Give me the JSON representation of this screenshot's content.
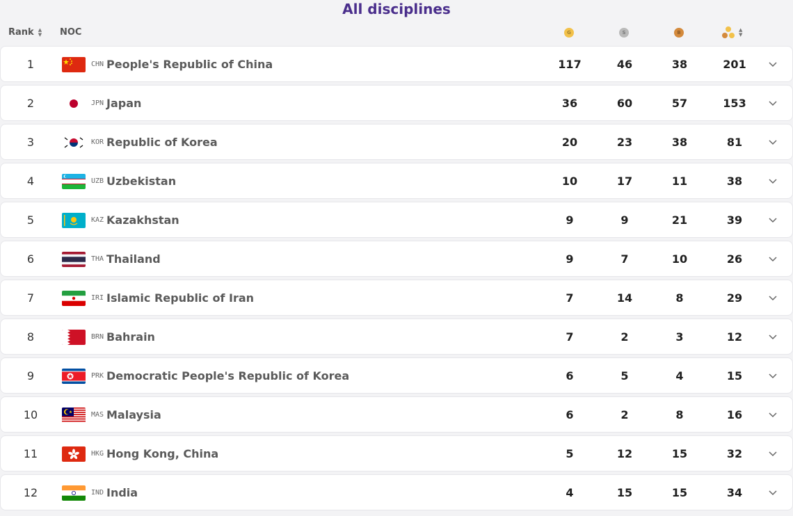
{
  "title": "All disciplines",
  "header": {
    "rank_label": "Rank",
    "noc_label": "NOC",
    "gold_letter": "G",
    "silver_letter": "S",
    "bronze_letter": "B"
  },
  "colors": {
    "accent": "#4a2e8c",
    "gold": "#f2c14a",
    "silver": "#b9b9b9",
    "bronze": "#d48a3c"
  },
  "rows": [
    {
      "rank": "1",
      "code": "CHN",
      "name": "People's Republic of China",
      "gold": "117",
      "silver": "46",
      "bronze": "38",
      "total": "201"
    },
    {
      "rank": "2",
      "code": "JPN",
      "name": "Japan",
      "gold": "36",
      "silver": "60",
      "bronze": "57",
      "total": "153"
    },
    {
      "rank": "3",
      "code": "KOR",
      "name": "Republic of Korea",
      "gold": "20",
      "silver": "23",
      "bronze": "38",
      "total": "81"
    },
    {
      "rank": "4",
      "code": "UZB",
      "name": "Uzbekistan",
      "gold": "10",
      "silver": "17",
      "bronze": "11",
      "total": "38"
    },
    {
      "rank": "5",
      "code": "KAZ",
      "name": "Kazakhstan",
      "gold": "9",
      "silver": "9",
      "bronze": "21",
      "total": "39"
    },
    {
      "rank": "6",
      "code": "THA",
      "name": "Thailand",
      "gold": "9",
      "silver": "7",
      "bronze": "10",
      "total": "26"
    },
    {
      "rank": "7",
      "code": "IRI",
      "name": "Islamic Republic of Iran",
      "gold": "7",
      "silver": "14",
      "bronze": "8",
      "total": "29"
    },
    {
      "rank": "8",
      "code": "BRN",
      "name": "Bahrain",
      "gold": "7",
      "silver": "2",
      "bronze": "3",
      "total": "12"
    },
    {
      "rank": "9",
      "code": "PRK",
      "name": "Democratic People's Republic of Korea",
      "gold": "6",
      "silver": "5",
      "bronze": "4",
      "total": "15"
    },
    {
      "rank": "10",
      "code": "MAS",
      "name": "Malaysia",
      "gold": "6",
      "silver": "2",
      "bronze": "8",
      "total": "16"
    },
    {
      "rank": "11",
      "code": "HKG",
      "name": "Hong Kong, China",
      "gold": "5",
      "silver": "12",
      "bronze": "15",
      "total": "32"
    },
    {
      "rank": "12",
      "code": "IND",
      "name": "India",
      "gold": "4",
      "silver": "15",
      "bronze": "15",
      "total": "34"
    }
  ]
}
